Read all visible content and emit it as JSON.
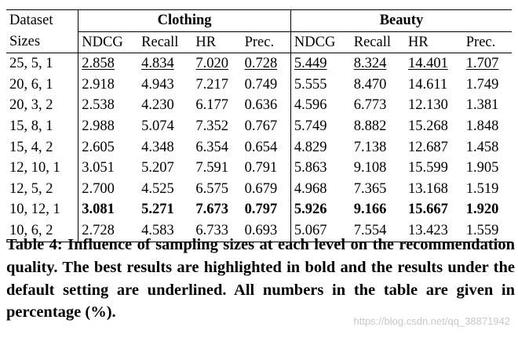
{
  "table": {
    "corner_label": "Dataset",
    "sizes_label": "Sizes",
    "groups": [
      "Clothing",
      "Beauty"
    ],
    "metrics": [
      "NDCG",
      "Recall",
      "HR",
      "Prec."
    ],
    "rows": [
      {
        "size": "25, 5, 1",
        "values": [
          "2.858",
          "4.834",
          "7.020",
          "0.728",
          "5.449",
          "8.324",
          "14.401",
          "1.707"
        ],
        "style": "underline"
      },
      {
        "size": "20, 6, 1",
        "values": [
          "2.918",
          "4.943",
          "7.217",
          "0.749",
          "5.555",
          "8.470",
          "14.611",
          "1.749"
        ],
        "style": "normal"
      },
      {
        "size": "20, 3, 2",
        "values": [
          "2.538",
          "4.230",
          "6.177",
          "0.636",
          "4.596",
          "6.773",
          "12.130",
          "1.381"
        ],
        "style": "normal"
      },
      {
        "size": "15, 8, 1",
        "values": [
          "2.988",
          "5.074",
          "7.352",
          "0.767",
          "5.749",
          "8.882",
          "15.268",
          "1.848"
        ],
        "style": "normal"
      },
      {
        "size": "15, 4, 2",
        "values": [
          "2.605",
          "4.348",
          "6.354",
          "0.654",
          "4.829",
          "7.138",
          "12.687",
          "1.458"
        ],
        "style": "normal"
      },
      {
        "size": "12, 10, 1",
        "values": [
          "3.051",
          "5.207",
          "7.591",
          "0.791",
          "5.863",
          "9.108",
          "15.599",
          "1.905"
        ],
        "style": "normal"
      },
      {
        "size": "12, 5, 2",
        "values": [
          "2.700",
          "4.525",
          "6.575",
          "0.679",
          "4.968",
          "7.365",
          "13.168",
          "1.519"
        ],
        "style": "normal"
      },
      {
        "size": "10, 12, 1",
        "values": [
          "3.081",
          "5.271",
          "7.673",
          "0.797",
          "5.926",
          "9.166",
          "15.667",
          "1.920"
        ],
        "style": "bold"
      },
      {
        "size": "10, 6, 2",
        "values": [
          "2.728",
          "4.583",
          "6.733",
          "0.693",
          "5.067",
          "7.554",
          "13.423",
          "1.559"
        ],
        "style": "normal"
      }
    ]
  },
  "caption": "Table 4: Influence of sampling sizes at each level on the recommendation quality. The best results are highlighted in bold and the results under the default setting are underlined. All numbers in the table are given in percentage (%).",
  "watermark": "https://blog.csdn.net/qq_38871942"
}
